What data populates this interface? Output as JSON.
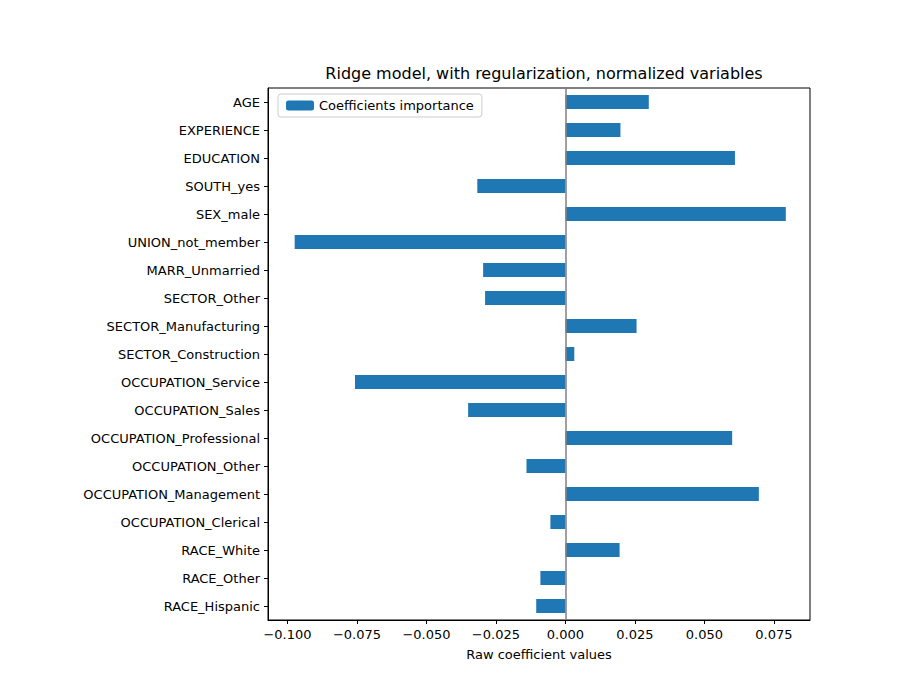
{
  "chart_data": {
    "type": "bar",
    "orientation": "horizontal",
    "title": "Ridge model, with regularization, normalized variables",
    "x_label": "Raw coefficient values",
    "categories": [
      "AGE",
      "EXPERIENCE",
      "EDUCATION",
      "SOUTH_yes",
      "SEX_male",
      "UNION_not_member",
      "MARR_Unmarried",
      "SECTOR_Other",
      "SECTOR_Manufacturing",
      "SECTOR_Construction",
      "OCCUPATION_Service",
      "OCCUPATION_Sales",
      "OCCUPATION_Professional",
      "OCCUPATION_Other",
      "OCCUPATION_Management",
      "OCCUPATION_Clerical",
      "RACE_White",
      "RACE_Other",
      "RACE_Hispanic"
    ],
    "series": [
      {
        "name": "Coefficients importance",
        "color": "#1f77b4",
        "values": [
          0.03,
          0.0198,
          0.061,
          -0.0317,
          0.0793,
          -0.0974,
          -0.0296,
          -0.0289,
          0.0256,
          0.0032,
          -0.0757,
          -0.035,
          0.06,
          -0.014,
          0.0696,
          -0.0054,
          0.0195,
          -0.009,
          -0.0105
        ]
      }
    ],
    "xlim": [
      -0.107,
      0.088
    ],
    "xticks": [
      {
        "value": -0.1,
        "label": "−0.100"
      },
      {
        "value": -0.075,
        "label": "−0.075"
      },
      {
        "value": -0.05,
        "label": "−0.050"
      },
      {
        "value": -0.025,
        "label": "−0.025"
      },
      {
        "value": 0,
        "label": "0.000"
      },
      {
        "value": 0.025,
        "label": "0.025"
      },
      {
        "value": 0.05,
        "label": "0.050"
      },
      {
        "value": 0.075,
        "label": "0.075"
      }
    ],
    "legend": "upper left",
    "grid": false
  }
}
